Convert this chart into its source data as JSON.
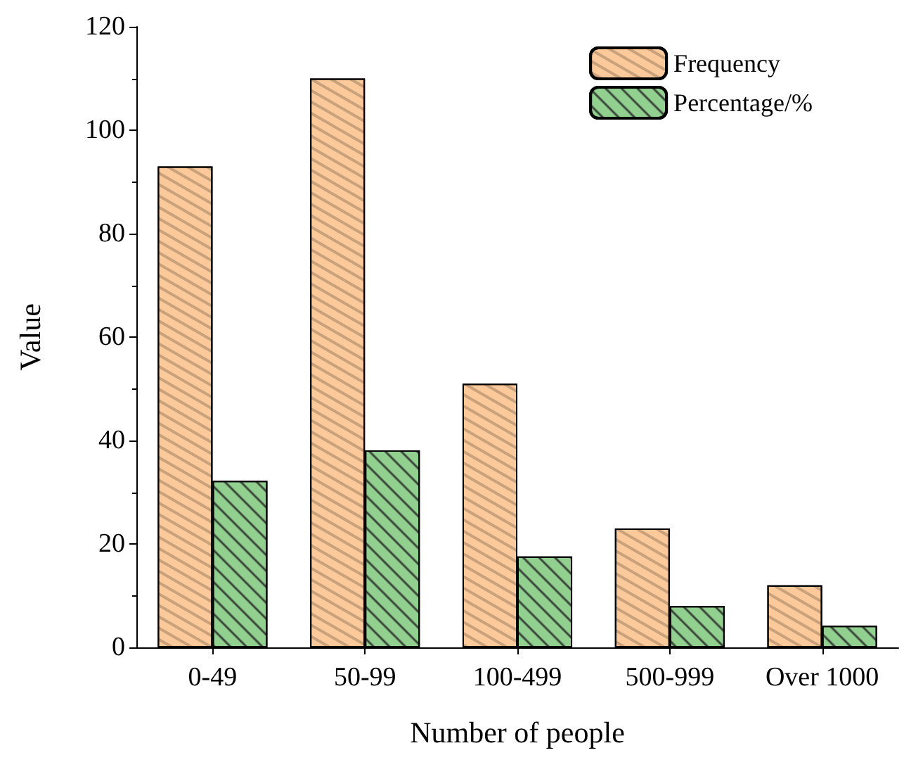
{
  "chart_data": {
    "type": "bar",
    "xlabel": "Number of people",
    "ylabel": "Value",
    "categories": [
      "0-49",
      "50-99",
      "100-499",
      "500-999",
      "Over 1000"
    ],
    "series": [
      {
        "name": "Frequency",
        "color": "#fbc99a",
        "values": [
          93,
          110,
          51,
          23,
          12
        ]
      },
      {
        "name": "Percentage/%",
        "color": "#92d090",
        "values": [
          32.2,
          38.1,
          17.6,
          8.0,
          4.2
        ]
      }
    ],
    "ylim": [
      0,
      120
    ],
    "yticks": [
      0,
      20,
      40,
      60,
      80,
      100,
      120
    ],
    "grid": false,
    "legend": "top right"
  }
}
